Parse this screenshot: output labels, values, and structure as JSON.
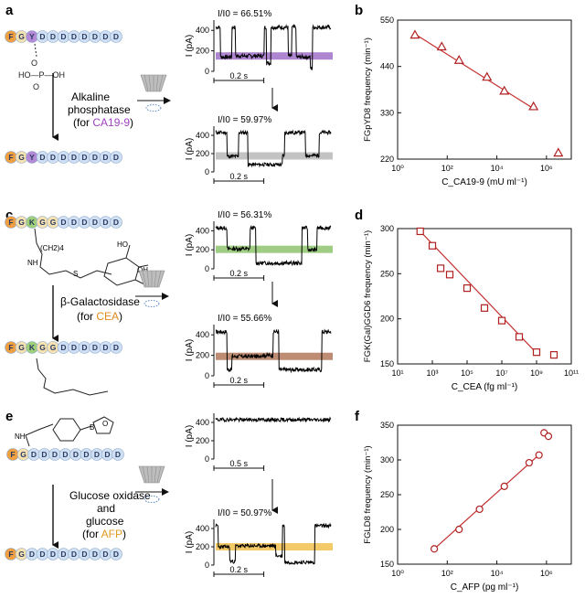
{
  "panels": {
    "a": {
      "letter": "a",
      "peptide": [
        "F",
        "G",
        "pY",
        "D",
        "D",
        "D",
        "D",
        "D",
        "D",
        "D",
        "D"
      ],
      "phosphate_text": "O=P-OH",
      "enzyme_label_1": "Alkaline",
      "enzyme_label_2": "phosphatase",
      "target_prefix": "(for ",
      "target": "CA19-9",
      "target_suffix": ")",
      "product": [
        "F",
        "G",
        "Y",
        "D",
        "D",
        "D",
        "D",
        "D",
        "D",
        "D",
        "D"
      ],
      "trace1_ratio": "I/I0 = 66.51%",
      "trace2_ratio": "I/I0 = 59.97%",
      "ylabel": "I (pA)",
      "yticks": [
        "400",
        "200",
        "0"
      ],
      "scalebar1": "0.2 s",
      "scalebar2": "0.2 s",
      "band1_color": "#a070c8",
      "band2_color": "#b8b8b8"
    },
    "c": {
      "letter": "c",
      "peptide": [
        "F",
        "G",
        "K",
        "G",
        "G",
        "D",
        "D",
        "D",
        "D",
        "D",
        "D"
      ],
      "side_labels": [
        "(CH2)4",
        "NH",
        "S",
        "OH",
        "HO"
      ],
      "enzyme_label_1": "β-Galactosidase",
      "target_prefix": "(for ",
      "target": "CEA",
      "target_suffix": ")",
      "product": [
        "F",
        "G",
        "K",
        "G",
        "G",
        "D",
        "D",
        "D",
        "D",
        "D",
        "D"
      ],
      "trace1_ratio": "I/I0 = 56.31%",
      "trace2_ratio": "I/I0 = 55.66%",
      "ylabel": "I (pA)",
      "yticks": [
        "400",
        "200",
        "0"
      ],
      "scalebar1": "0.2 s",
      "scalebar2": "0.2 s",
      "band1_color": "#8fc46f",
      "band2_color": "#b3785a"
    },
    "e": {
      "letter": "e",
      "peptide": [
        "F",
        "G",
        "D",
        "D",
        "D",
        "D",
        "D",
        "D",
        "D",
        "D",
        "D"
      ],
      "side_labels": [
        "NH",
        "B",
        "O"
      ],
      "enzyme_label_1": "Glucose oxidase",
      "enzyme_label_2": "and",
      "enzyme_label_3": "glucose",
      "target_prefix": "(for ",
      "target": "AFP",
      "target_suffix": ")",
      "product": [
        "F",
        "G",
        "D",
        "D",
        "D",
        "D",
        "D",
        "D",
        "D",
        "D",
        "D"
      ],
      "trace2_ratio": "I/I0 = 50.97%",
      "ylabel": "I (pA)",
      "yticks": [
        "400",
        "200",
        "0"
      ],
      "scalebar1": "0.5 s",
      "scalebar2": "0.2 s",
      "band2_color": "#f2c14e"
    }
  },
  "colors": {
    "F": "#f0a040",
    "G": "#f5e2b0",
    "D": "#cfe0f4",
    "pY": "#b48ad8",
    "K": "#9fd07a",
    "target_a": "#a040c0",
    "target_e": "#e39a20",
    "marker_b": "#b02020",
    "marker_d": "#b02020",
    "marker_f": "#b02020",
    "fit": "#c43030"
  },
  "chart_data": [
    {
      "panel": "b",
      "type": "scatter",
      "xlabel": "C_CA19-9 (mU ml⁻¹)",
      "ylabel": "FGpYD8 frequency (min⁻¹)",
      "x_scale": "log",
      "xlim": [
        1,
        10000000
      ],
      "ylim": [
        220,
        550
      ],
      "xticks": [
        1,
        100,
        10000,
        1000000
      ],
      "xtick_labels": [
        "10⁰",
        "10²",
        "10⁴",
        "10⁶"
      ],
      "yticks": [
        220,
        330,
        440,
        550
      ],
      "marker": "triangle",
      "series": [
        {
          "x": [
            5,
            60,
            300,
            4000,
            20000,
            300000,
            3000000
          ],
          "y": [
            515,
            487,
            455,
            415,
            382,
            345,
            235
          ],
          "err": [
            4,
            5,
            6,
            8,
            7,
            5,
            5
          ]
        }
      ],
      "fit_line": {
        "x": [
          5,
          300000
        ],
        "y": [
          517,
          340
        ]
      }
    },
    {
      "panel": "d",
      "type": "scatter",
      "xlabel": "C_CEA (fg ml⁻¹)",
      "ylabel": "FGK(Gal)GGD6 frequency (min⁻¹)",
      "x_scale": "log",
      "xlim": [
        10,
        100000000000
      ],
      "ylim": [
        150,
        300
      ],
      "xticks": [
        10,
        1000,
        100000,
        10000000,
        1000000000,
        100000000000
      ],
      "xtick_labels": [
        "10¹",
        "10³",
        "10⁵",
        "10⁷",
        "10⁹",
        "10¹¹"
      ],
      "yticks": [
        150,
        200,
        250,
        300
      ],
      "marker": "square",
      "series": [
        {
          "x": [
            200,
            1000,
            3000,
            10000,
            100000,
            1000000,
            10000000,
            100000000,
            1000000000,
            10000000000
          ],
          "y": [
            297,
            281,
            256,
            249,
            234,
            212,
            198,
            180,
            163,
            160
          ],
          "err": [
            4,
            3,
            3,
            3,
            3,
            2,
            2,
            2,
            2,
            3
          ]
        }
      ],
      "fit_line": {
        "x": [
          200,
          1000000000
        ],
        "y": [
          297,
          162
        ]
      }
    },
    {
      "panel": "f",
      "type": "scatter",
      "xlabel": "C_AFP (pg ml⁻¹)",
      "ylabel": "FGLD8 frequency (min⁻¹)",
      "x_scale": "log",
      "xlim": [
        1,
        10000000
      ],
      "ylim": [
        150,
        350
      ],
      "xticks": [
        1,
        100,
        10000,
        1000000
      ],
      "xtick_labels": [
        "10⁰",
        "10²",
        "10⁴",
        "10⁶"
      ],
      "yticks": [
        150,
        200,
        250,
        300,
        350
      ],
      "marker": "circle",
      "series": [
        {
          "x": [
            30,
            300,
            2000,
            20000,
            200000,
            500000,
            800000,
            1200000
          ],
          "y": [
            172,
            200,
            229,
            262,
            296,
            307,
            339,
            334
          ],
          "err": [
            3,
            5,
            4,
            3,
            3,
            3,
            4,
            5
          ]
        }
      ],
      "fit_line": {
        "x": [
          30,
          600000
        ],
        "y": [
          172,
          310
        ]
      }
    }
  ]
}
